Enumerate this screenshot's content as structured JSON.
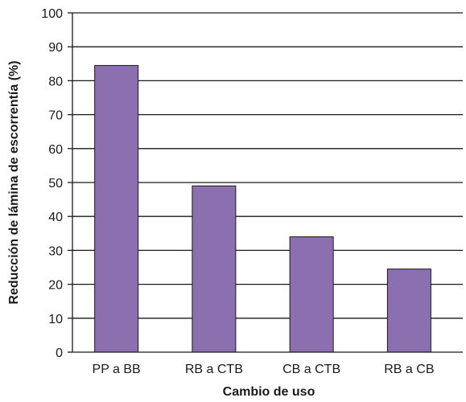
{
  "chart_data": {
    "type": "bar",
    "title": "",
    "xlabel": "Cambio de uso",
    "ylabel": "Reducción de lámina de escorrentía (%)",
    "categories": [
      "PP a BB",
      "RB a CTB",
      "CB a CTB",
      "RB a CB"
    ],
    "values": [
      84.5,
      49,
      34,
      24.5
    ],
    "ylim": [
      0,
      100
    ],
    "yticks": [
      0,
      10,
      20,
      30,
      40,
      50,
      60,
      70,
      80,
      90,
      100
    ],
    "grid": true,
    "bar_color": "#8b6fae",
    "bar_edge_color": "#1a1a1a"
  }
}
